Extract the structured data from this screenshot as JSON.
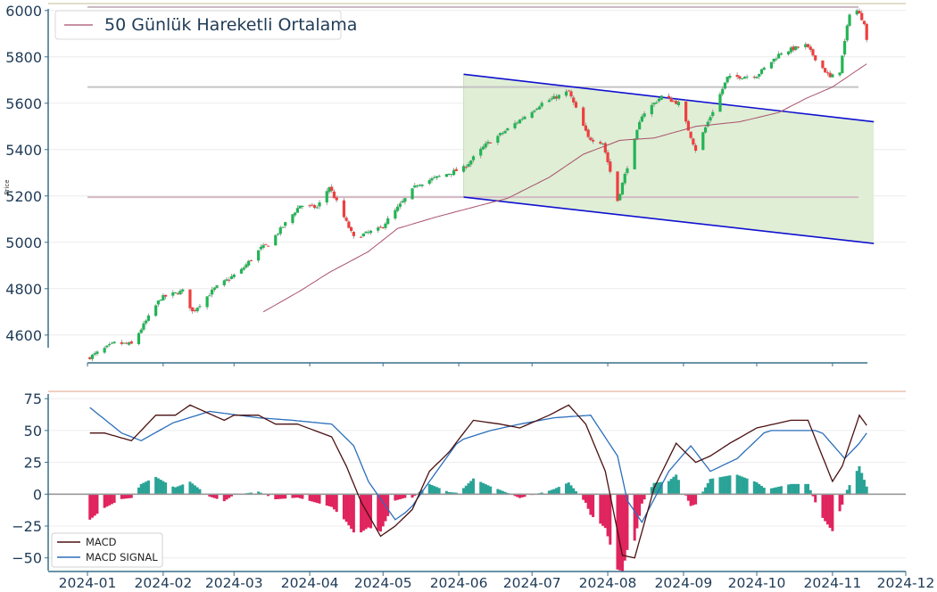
{
  "chart_data": [
    {
      "type": "candlestick",
      "ylabel": "Price",
      "ylim": [
        4480,
        6030
      ],
      "yticks": [
        "4600",
        "4800",
        "5000",
        "5200",
        "5400",
        "5600",
        "5800",
        "6000"
      ],
      "legend": {
        "placement": "top-left",
        "entries": [
          "50 Günlük Hareketli Ortalama"
        ]
      },
      "horizontal_levels": [
        6015,
        5670,
        5195
      ],
      "channel": {
        "start_date": "2024-06-03",
        "end_date": "2024-11-15",
        "upper": [
          5725,
          5520
        ],
        "lower": [
          5195,
          4995
        ],
        "fill": "#dfeed5"
      },
      "close_anchors": [
        [
          "2024-01-02",
          4505
        ],
        [
          "2024-01-12",
          4565
        ],
        [
          "2024-01-19",
          4560
        ],
        [
          "2024-01-31",
          4760
        ],
        [
          "2024-02-09",
          4790
        ],
        [
          "2024-02-13",
          4700
        ],
        [
          "2024-02-22",
          4800
        ],
        [
          "2024-03-04",
          4880
        ],
        [
          "2024-03-12",
          4975
        ],
        [
          "2024-03-15",
          4990
        ],
        [
          "2024-03-28",
          5160
        ],
        [
          "2024-04-04",
          5150
        ],
        [
          "2024-04-09",
          5240
        ],
        [
          "2024-04-19",
          5020
        ],
        [
          "2024-04-30",
          5060
        ],
        [
          "2024-05-15",
          5250
        ],
        [
          "2024-05-23",
          5280
        ],
        [
          "2024-06-03",
          5320
        ],
        [
          "2024-06-12",
          5420
        ],
        [
          "2024-06-20",
          5480
        ],
        [
          "2024-07-05",
          5600
        ],
        [
          "2024-07-16",
          5650
        ],
        [
          "2024-07-24",
          5450
        ],
        [
          "2024-07-30",
          5430
        ],
        [
          "2024-08-05",
          5180
        ],
        [
          "2024-08-15",
          5550
        ],
        [
          "2024-08-23",
          5630
        ],
        [
          "2024-08-30",
          5600
        ],
        [
          "2024-09-06",
          5400
        ],
        [
          "2024-09-19",
          5710
        ],
        [
          "2024-10-01",
          5720
        ],
        [
          "2024-10-11",
          5820
        ],
        [
          "2024-10-21",
          5850
        ],
        [
          "2024-10-31",
          5710
        ],
        [
          "2024-11-04",
          5740
        ],
        [
          "2024-11-08",
          5990
        ],
        [
          "2024-11-11",
          6000
        ],
        [
          "2024-11-14",
          5950
        ],
        [
          "2024-11-15",
          5870
        ]
      ],
      "ma50_anchors": [
        [
          "2024-03-13",
          4700
        ],
        [
          "2024-03-28",
          4790
        ],
        [
          "2024-04-09",
          4870
        ],
        [
          "2024-04-25",
          4960
        ],
        [
          "2024-05-07",
          5060
        ],
        [
          "2024-05-23",
          5110
        ],
        [
          "2024-06-10",
          5160
        ],
        [
          "2024-06-21",
          5190
        ],
        [
          "2024-07-08",
          5280
        ],
        [
          "2024-07-22",
          5380
        ],
        [
          "2024-08-06",
          5440
        ],
        [
          "2024-08-20",
          5450
        ],
        [
          "2024-09-06",
          5500
        ],
        [
          "2024-09-24",
          5520
        ],
        [
          "2024-10-10",
          5560
        ],
        [
          "2024-10-21",
          5620
        ],
        [
          "2024-11-01",
          5670
        ],
        [
          "2024-11-15",
          5770
        ]
      ]
    },
    {
      "type": "macd",
      "ylim": [
        -60,
        80
      ],
      "yticks": [
        "75",
        "50",
        "25",
        "0",
        "−25",
        "−50"
      ],
      "legend": {
        "placement": "bottom-left",
        "entries": [
          "MACD",
          "MACD SIGNAL"
        ]
      },
      "xticks": [
        "2024-01",
        "2024-02",
        "2024-03",
        "2024-04",
        "2024-05",
        "2024-06",
        "2024-07",
        "2024-08",
        "2024-09",
        "2024-10",
        "2024-11",
        "2024-12"
      ],
      "macd_anchors": [
        [
          "2024-01-02",
          48
        ],
        [
          "2024-01-08",
          48
        ],
        [
          "2024-01-19",
          42
        ],
        [
          "2024-01-29",
          62
        ],
        [
          "2024-02-06",
          62
        ],
        [
          "2024-02-12",
          70
        ],
        [
          "2024-02-26",
          58
        ],
        [
          "2024-03-01",
          62
        ],
        [
          "2024-03-11",
          62
        ],
        [
          "2024-03-18",
          55
        ],
        [
          "2024-03-27",
          55
        ],
        [
          "2024-04-10",
          45
        ],
        [
          "2024-04-16",
          22
        ],
        [
          "2024-04-22",
          -6
        ],
        [
          "2024-04-30",
          -33
        ],
        [
          "2024-05-06",
          -25
        ],
        [
          "2024-05-13",
          -12
        ],
        [
          "2024-05-20",
          18
        ],
        [
          "2024-05-28",
          33
        ],
        [
          "2024-06-07",
          58
        ],
        [
          "2024-06-18",
          55
        ],
        [
          "2024-06-26",
          52
        ],
        [
          "2024-07-08",
          62
        ],
        [
          "2024-07-16",
          70
        ],
        [
          "2024-07-23",
          55
        ],
        [
          "2024-07-31",
          18
        ],
        [
          "2024-08-07",
          -48
        ],
        [
          "2024-08-12",
          -50
        ],
        [
          "2024-08-20",
          5
        ],
        [
          "2024-08-29",
          40
        ],
        [
          "2024-09-06",
          25
        ],
        [
          "2024-09-12",
          30
        ],
        [
          "2024-09-20",
          40
        ],
        [
          "2024-10-01",
          52
        ],
        [
          "2024-10-15",
          58
        ],
        [
          "2024-10-22",
          58
        ],
        [
          "2024-11-01",
          10
        ],
        [
          "2024-11-05",
          22
        ],
        [
          "2024-11-12",
          62
        ],
        [
          "2024-11-15",
          54
        ]
      ],
      "signal_anchors": [
        [
          "2024-01-02",
          68
        ],
        [
          "2024-01-15",
          48
        ],
        [
          "2024-01-23",
          42
        ],
        [
          "2024-02-05",
          56
        ],
        [
          "2024-02-20",
          65
        ],
        [
          "2024-03-11",
          60
        ],
        [
          "2024-03-25",
          58
        ],
        [
          "2024-04-10",
          55
        ],
        [
          "2024-04-19",
          38
        ],
        [
          "2024-04-25",
          10
        ],
        [
          "2024-05-06",
          -20
        ],
        [
          "2024-05-12",
          -12
        ],
        [
          "2024-05-20",
          10
        ],
        [
          "2024-06-01",
          42
        ],
        [
          "2024-06-14",
          50
        ],
        [
          "2024-06-26",
          55
        ],
        [
          "2024-07-10",
          60
        ],
        [
          "2024-07-25",
          62
        ],
        [
          "2024-08-05",
          30
        ],
        [
          "2024-08-09",
          -5
        ],
        [
          "2024-08-15",
          -22
        ],
        [
          "2024-08-26",
          18
        ],
        [
          "2024-09-04",
          38
        ],
        [
          "2024-09-12",
          18
        ],
        [
          "2024-09-23",
          28
        ],
        [
          "2024-10-05",
          50
        ],
        [
          "2024-10-16",
          50
        ],
        [
          "2024-10-27",
          50
        ],
        [
          "2024-11-06",
          28
        ],
        [
          "2024-11-12",
          40
        ],
        [
          "2024-11-15",
          48
        ]
      ],
      "colors": {
        "macd": "#4a1010",
        "signal": "#2a6ebb",
        "hist_pos": "#2aa397",
        "hist_neg": "#e0245e"
      }
    }
  ]
}
